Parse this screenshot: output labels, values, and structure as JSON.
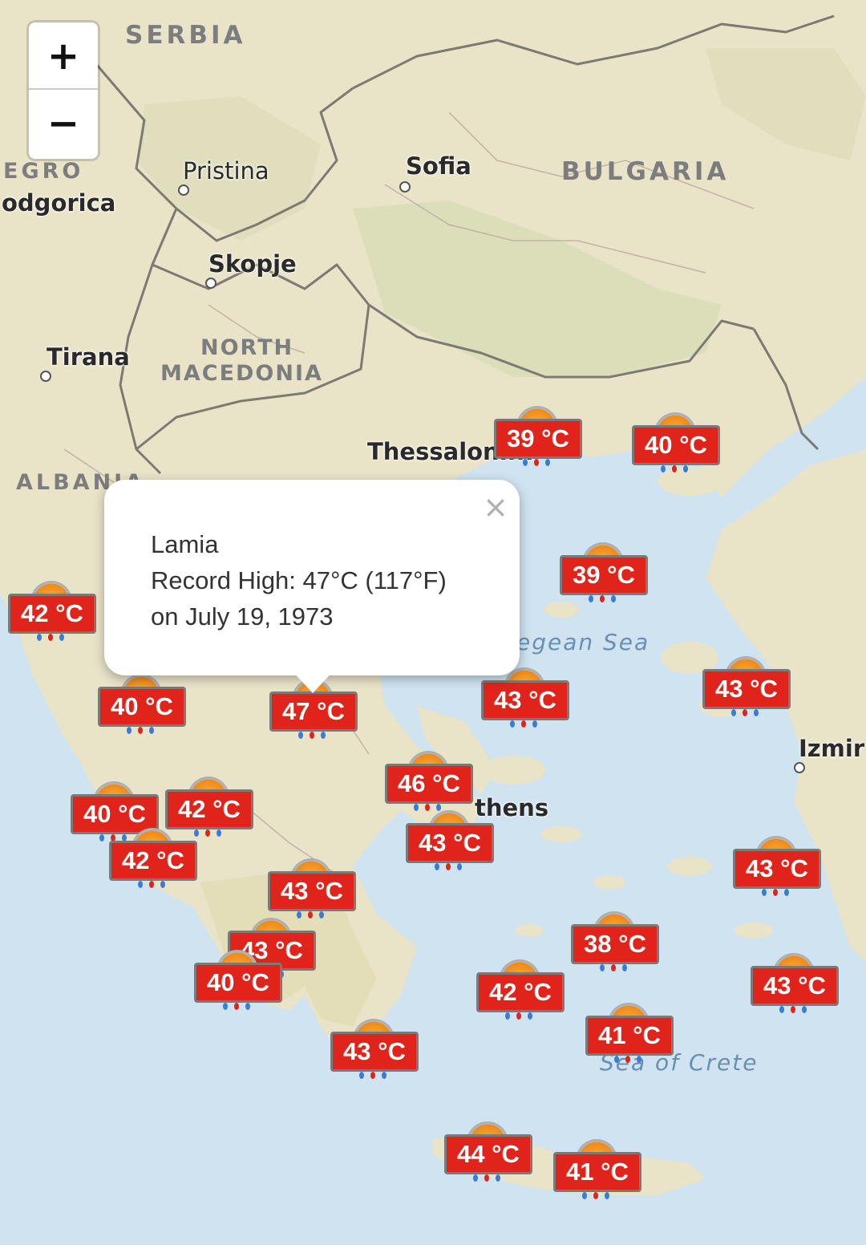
{
  "zoom": {
    "in_label": "+",
    "out_label": "−"
  },
  "labels": {
    "serbia": "SERBIA",
    "montenegro": "EGRO",
    "podgorica": "odgorica",
    "pristina": "Pristina",
    "sofia": "Sofia",
    "bulgaria": "BULGARIA",
    "skopje": "Skopje",
    "tirana": "Tirana",
    "north_macedonia_1": "NORTH",
    "north_macedonia_2": "MACEDONIA",
    "albania": "ALBANIA",
    "thessaloniki": "Thessalonı...",
    "aegean_sea": "egean Sea",
    "izmir": "Izmir",
    "athens": "thens",
    "sea_of_crete": "Sea of Crete"
  },
  "popup": {
    "city": "Lamia",
    "line1": "Record High: 47°C (117°F)",
    "line2": "on July 19, 1973",
    "close": "×"
  },
  "markers": [
    {
      "id": "m1",
      "label": "39 °C"
    },
    {
      "id": "m2",
      "label": "40 °C"
    },
    {
      "id": "m3",
      "label": "39 °C"
    },
    {
      "id": "m4",
      "label": "42 °C"
    },
    {
      "id": "m5",
      "label": "43 °C"
    },
    {
      "id": "m6",
      "label": "40 °C"
    },
    {
      "id": "m7",
      "label": "47 °C"
    },
    {
      "id": "m8",
      "label": "43 °C"
    },
    {
      "id": "m9",
      "label": "46 °C"
    },
    {
      "id": "m10",
      "label": "40 °C"
    },
    {
      "id": "m11",
      "label": "42 °C"
    },
    {
      "id": "m12",
      "label": "43 °C"
    },
    {
      "id": "m13",
      "label": "42 °C"
    },
    {
      "id": "m14",
      "label": "43 °C"
    },
    {
      "id": "m15",
      "label": "43 °C"
    },
    {
      "id": "m16",
      "label": "43 °C"
    },
    {
      "id": "m17",
      "label": "40 °C"
    },
    {
      "id": "m18",
      "label": "38 °C"
    },
    {
      "id": "m19",
      "label": "42 °C"
    },
    {
      "id": "m20",
      "label": "43 °C"
    },
    {
      "id": "m21",
      "label": "41 °C"
    },
    {
      "id": "m22",
      "label": "43 °C"
    },
    {
      "id": "m23",
      "label": "44 °C"
    },
    {
      "id": "m24",
      "label": "41 °C"
    }
  ]
}
